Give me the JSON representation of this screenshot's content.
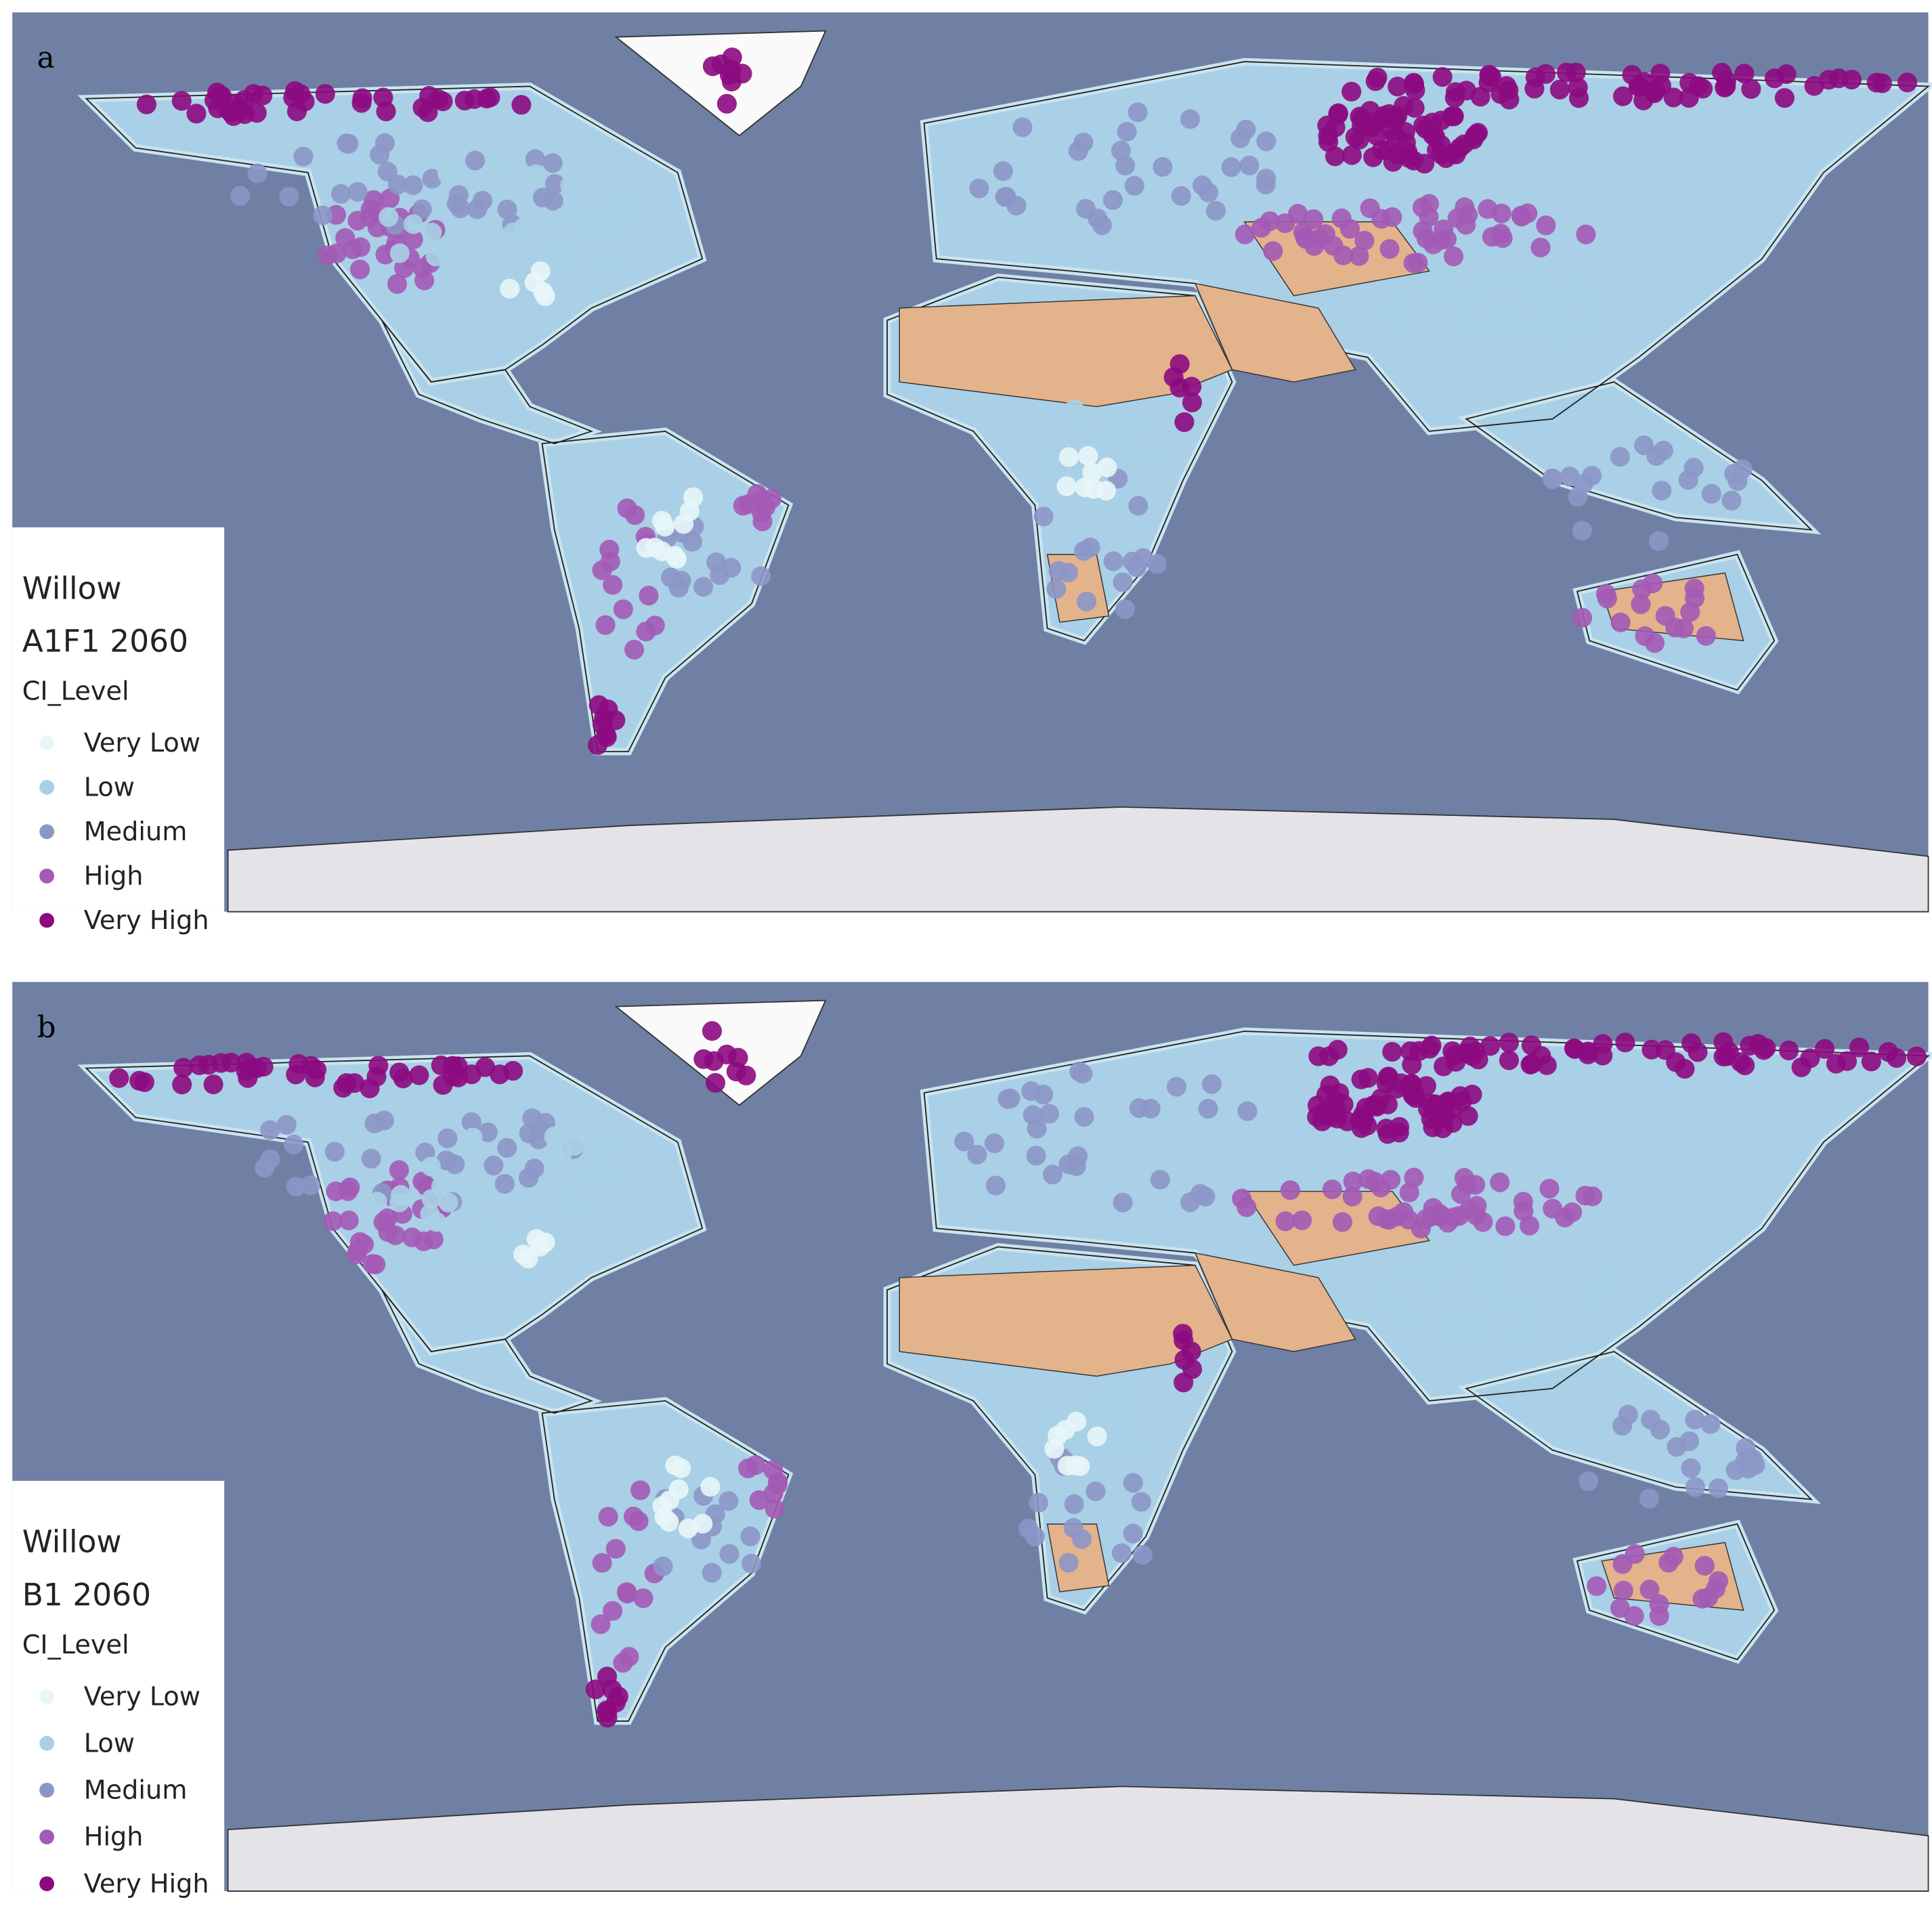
{
  "panels": [
    {
      "label": "a",
      "legend": {
        "title": "Willow",
        "scenario": "A1F1 2060",
        "field": "CI_Level",
        "items": [
          {
            "label": "Very Low",
            "color": "#e8f6f8"
          },
          {
            "label": "Low",
            "color": "#a9d0e6"
          },
          {
            "label": "Medium",
            "color": "#8c96c6"
          },
          {
            "label": "High",
            "color": "#a35ab5"
          },
          {
            "label": "Very High",
            "color": "#8c0a7f"
          }
        ]
      }
    },
    {
      "label": "b",
      "legend": {
        "title": "Willow",
        "scenario": "B1 2060",
        "field": "CI_Level",
        "items": [
          {
            "label": "Very Low",
            "color": "#e8f6f8"
          },
          {
            "label": "Low",
            "color": "#a9d0e6"
          },
          {
            "label": "Medium",
            "color": "#8c96c6"
          },
          {
            "label": "High",
            "color": "#a35ab5"
          },
          {
            "label": "Very High",
            "color": "#8c0a7f"
          }
        ]
      }
    }
  ]
}
